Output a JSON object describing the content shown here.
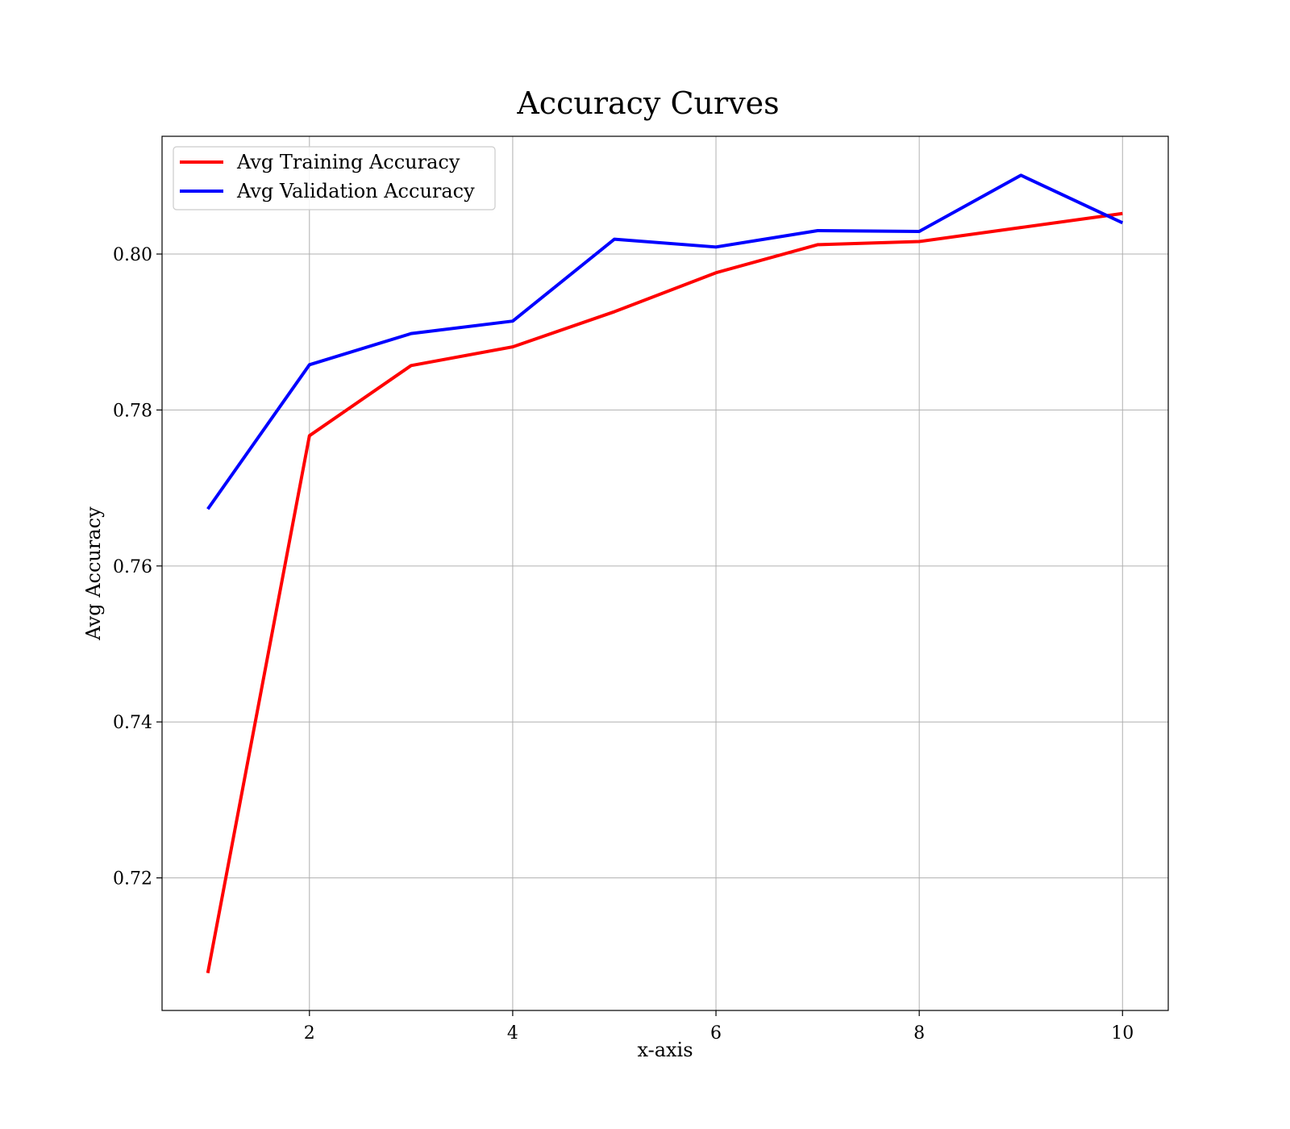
{
  "chart_data": {
    "type": "line",
    "title": "Accuracy Curves",
    "xlabel": "x-axis",
    "ylabel": "Avg Accuracy",
    "x": [
      1,
      2,
      3,
      4,
      5,
      6,
      7,
      8,
      9,
      10
    ],
    "xlim": [
      0.55,
      10.45
    ],
    "ylim": [
      0.703,
      0.8151
    ],
    "xticks": [
      2,
      4,
      6,
      8,
      10
    ],
    "yticks": [
      0.72,
      0.74,
      0.76,
      0.78,
      0.8
    ],
    "xtick_labels": [
      "2",
      "4",
      "6",
      "8",
      "10"
    ],
    "ytick_labels": [
      "0.72",
      "0.74",
      "0.76",
      "0.78",
      "0.80"
    ],
    "grid": true,
    "legend_position": "top-left",
    "series": [
      {
        "name": "Avg Training Accuracy",
        "color": "#ff0000",
        "values": [
          0.7078,
          0.7767,
          0.7857,
          0.7881,
          0.7926,
          0.7976,
          0.8012,
          0.8016,
          0.8034,
          0.8052
        ]
      },
      {
        "name": "Avg Validation Accuracy",
        "color": "#0000ff",
        "values": [
          0.7673,
          0.7858,
          0.7898,
          0.7914,
          0.8019,
          0.8009,
          0.803,
          0.8029,
          0.8101,
          0.804
        ]
      }
    ]
  }
}
